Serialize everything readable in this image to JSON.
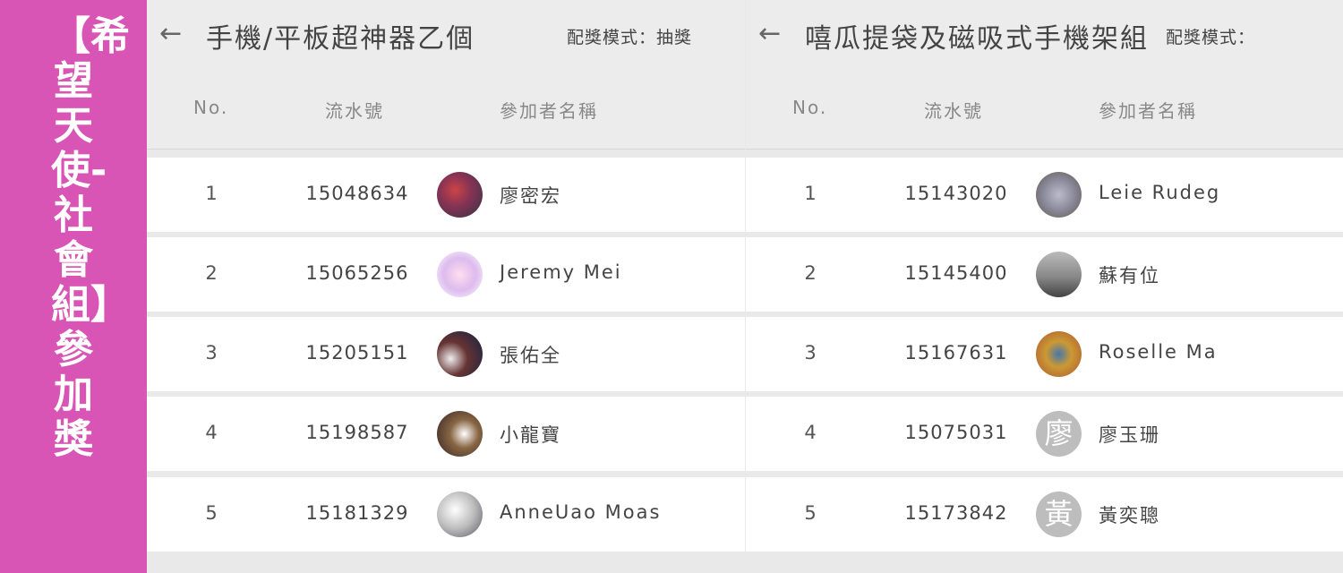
{
  "sidebar": {
    "banner": "【希望天使-社會組】參加獎",
    "color": "#d955b5"
  },
  "panels": [
    {
      "title": "手機/平板超神器乙個",
      "mode": "配獎模式：抽獎",
      "columns": [
        "No.",
        "流水號",
        "參加者名稱"
      ],
      "rows": [
        {
          "no": "1",
          "serial": "15048634",
          "name": "廖密宏",
          "avatar": "photo"
        },
        {
          "no": "2",
          "serial": "15065256",
          "name": "Jeremy Mei",
          "avatar": "photo"
        },
        {
          "no": "3",
          "serial": "15205151",
          "name": "張佑全",
          "avatar": "photo"
        },
        {
          "no": "4",
          "serial": "15198587",
          "name": "小龍寶",
          "avatar": "photo"
        },
        {
          "no": "5",
          "serial": "15181329",
          "name": "AnneUao Moas",
          "avatar": "photo"
        }
      ]
    },
    {
      "title": "嘻瓜提袋及磁吸式手機架組",
      "mode": "配獎模式：",
      "columns": [
        "No.",
        "流水號",
        "參加者名稱"
      ],
      "rows": [
        {
          "no": "1",
          "serial": "15143020",
          "name": "Leie Rudeg",
          "avatar": "photo"
        },
        {
          "no": "2",
          "serial": "15145400",
          "name": "蘇有位",
          "avatar": "photo"
        },
        {
          "no": "3",
          "serial": "15167631",
          "name": "Roselle Ma",
          "avatar": "photo"
        },
        {
          "no": "4",
          "serial": "15075031",
          "name": "廖玉珊",
          "avatar": "廖"
        },
        {
          "no": "5",
          "serial": "15173842",
          "name": "黃奕聰",
          "avatar": "黃"
        }
      ]
    }
  ]
}
